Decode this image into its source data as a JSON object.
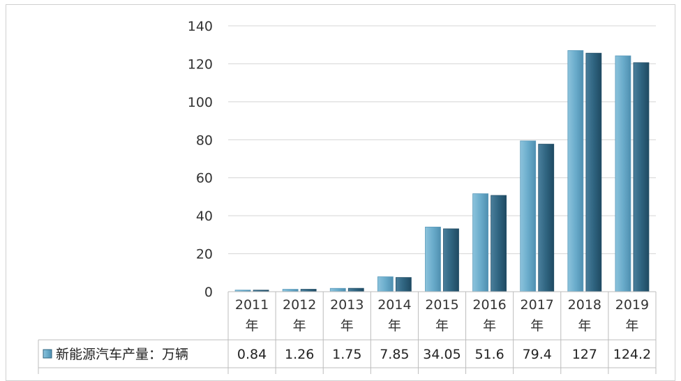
{
  "chart_data": {
    "type": "bar",
    "categories": [
      [
        "2011",
        "年"
      ],
      [
        "2012",
        "年"
      ],
      [
        "2013",
        "年"
      ],
      [
        "2014",
        "年"
      ],
      [
        "2015",
        "年"
      ],
      [
        "2016",
        "年"
      ],
      [
        "2017",
        "年"
      ],
      [
        "2018",
        "年"
      ],
      [
        "2019",
        "年"
      ]
    ],
    "series": [
      {
        "name": "新能源汽车产量：万辆",
        "values": [
          0.84,
          1.26,
          1.75,
          7.85,
          34.05,
          51.6,
          79.4,
          127,
          124.2
        ],
        "value_labels": [
          "0.84",
          "1.26",
          "1.75",
          "7.85",
          "34.05",
          "51.6",
          "79.4",
          "127",
          "124.2"
        ],
        "color": "#6aaccb"
      },
      {
        "values": [
          0.82,
          1.28,
          1.78,
          7.48,
          33.11,
          50.7,
          77.7,
          125.6,
          120.6
        ],
        "color": "#2f6480"
      }
    ],
    "ylim": [
      0,
      140
    ],
    "yticks": [
      0,
      20,
      40,
      60,
      80,
      100,
      120,
      140
    ],
    "ytick_labels": [
      "0",
      "20",
      "40",
      "60",
      "80",
      "100",
      "120",
      "140"
    ],
    "grid": true,
    "legend": "data-table-row"
  }
}
